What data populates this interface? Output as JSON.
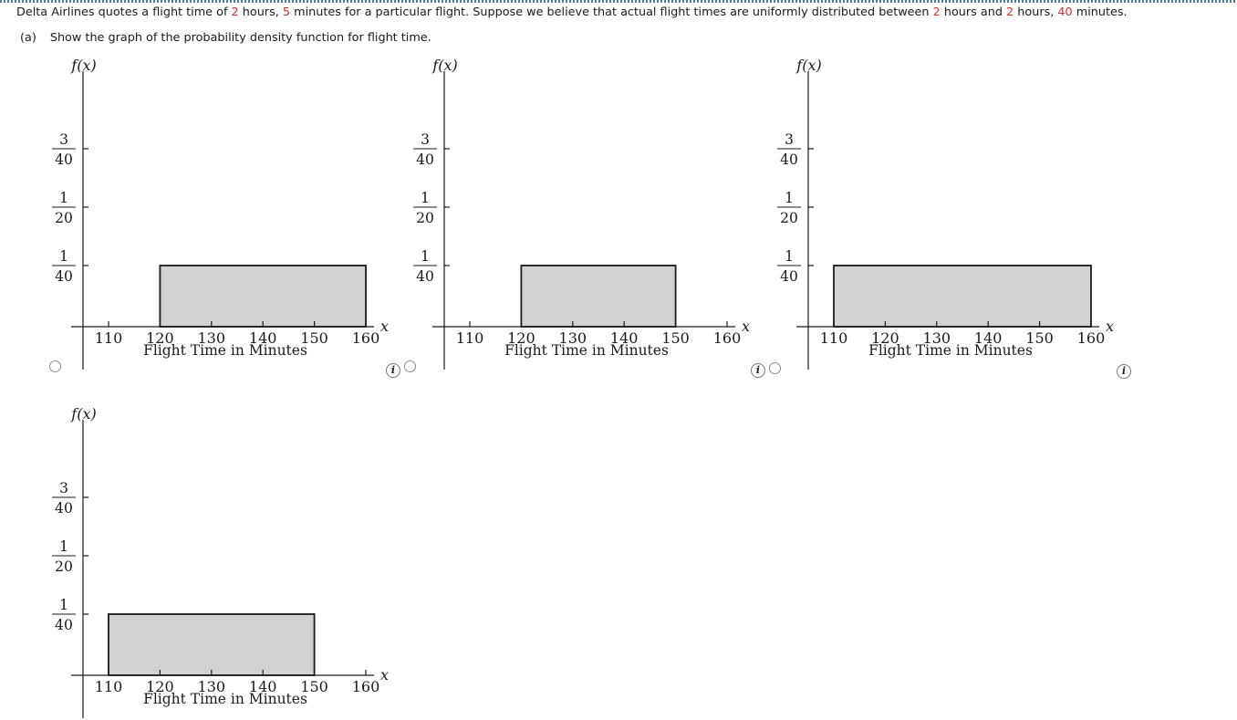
{
  "colors": {
    "red_highlight": "#cc3333",
    "dotted_divider": "#4e7d9b",
    "rect_fill": "#d2d2d2",
    "rect_stroke": "#1a1a1a",
    "axis": "#1a1a1a",
    "icon_border": "#777777"
  },
  "problem": {
    "segments": [
      {
        "t": "Delta Airlines quotes a flight time of ",
        "red": false
      },
      {
        "t": "2",
        "red": true
      },
      {
        "t": " hours, ",
        "red": false
      },
      {
        "t": "5",
        "red": true
      },
      {
        "t": " minutes for a particular flight. Suppose we believe that actual flight times are uniformly distributed between ",
        "red": false
      },
      {
        "t": "2",
        "red": true
      },
      {
        "t": " hours and ",
        "red": false
      },
      {
        "t": "2",
        "red": true
      },
      {
        "t": " hours, ",
        "red": false
      },
      {
        "t": "40",
        "red": true
      },
      {
        "t": " minutes.",
        "red": false
      }
    ]
  },
  "part": {
    "label": "(a)",
    "text": "Show the graph of the probability density function for flight time."
  },
  "info_glyph": "i",
  "options": [
    {
      "id": 1,
      "chart_index": 0,
      "radio_visible": true,
      "selected": false,
      "info_visible": true
    },
    {
      "id": 2,
      "chart_index": 1,
      "radio_visible": true,
      "selected": false,
      "info_visible": true
    },
    {
      "id": 3,
      "chart_index": 2,
      "radio_visible": true,
      "selected": false,
      "info_visible": true
    },
    {
      "id": 4,
      "chart_index": 3,
      "radio_visible": false,
      "selected": false,
      "info_visible": false
    }
  ],
  "chart_data": [
    {
      "type": "area",
      "subtype": "uniform-pdf-rectangle",
      "y_axis_symbol": "f(x)",
      "x_axis_symbol": "x",
      "xlabel": "Flight Time in Minutes",
      "x_ticks": [
        110,
        120,
        130,
        140,
        150,
        160
      ],
      "y_ticks": [
        {
          "num": "3",
          "den": "40",
          "value": 0.075
        },
        {
          "num": "1",
          "den": "20",
          "value": 0.05
        },
        {
          "num": "1",
          "den": "40",
          "value": 0.025
        }
      ],
      "ylim": [
        0,
        0.1
      ],
      "grid": false,
      "rect": {
        "x_from": 120,
        "x_to": 160,
        "height_value": 0.025,
        "height_num": "1",
        "height_den": "40"
      }
    },
    {
      "type": "area",
      "subtype": "uniform-pdf-rectangle",
      "y_axis_symbol": "f(x)",
      "x_axis_symbol": "x",
      "xlabel": "Flight Time in Minutes",
      "x_ticks": [
        110,
        120,
        130,
        140,
        150,
        160
      ],
      "y_ticks": [
        {
          "num": "3",
          "den": "40",
          "value": 0.075
        },
        {
          "num": "1",
          "den": "20",
          "value": 0.05
        },
        {
          "num": "1",
          "den": "40",
          "value": 0.025
        }
      ],
      "ylim": [
        0,
        0.1
      ],
      "grid": false,
      "rect": {
        "x_from": 120,
        "x_to": 150,
        "height_value": 0.025,
        "height_num": "1",
        "height_den": "40"
      }
    },
    {
      "type": "area",
      "subtype": "uniform-pdf-rectangle",
      "y_axis_symbol": "f(x)",
      "x_axis_symbol": "x",
      "xlabel": "Flight Time in Minutes",
      "x_ticks": [
        110,
        120,
        130,
        140,
        150,
        160
      ],
      "y_ticks": [
        {
          "num": "3",
          "den": "40",
          "value": 0.075
        },
        {
          "num": "1",
          "den": "20",
          "value": 0.05
        },
        {
          "num": "1",
          "den": "40",
          "value": 0.025
        }
      ],
      "ylim": [
        0,
        0.1
      ],
      "grid": false,
      "rect": {
        "x_from": 110,
        "x_to": 160,
        "height_value": 0.025,
        "height_num": "1",
        "height_den": "40"
      }
    },
    {
      "type": "area",
      "subtype": "uniform-pdf-rectangle",
      "y_axis_symbol": "f(x)",
      "x_axis_symbol": "x",
      "xlabel": "Flight Time in Minutes",
      "x_ticks": [
        110,
        120,
        130,
        140,
        150,
        160
      ],
      "y_ticks": [
        {
          "num": "3",
          "den": "40",
          "value": 0.075
        },
        {
          "num": "1",
          "den": "20",
          "value": 0.05
        },
        {
          "num": "1",
          "den": "40",
          "value": 0.025
        }
      ],
      "ylim": [
        0,
        0.1
      ],
      "grid": false,
      "rect": {
        "x_from": 110,
        "x_to": 150,
        "height_value": 0.025,
        "height_num": "1",
        "height_den": "40"
      }
    }
  ]
}
